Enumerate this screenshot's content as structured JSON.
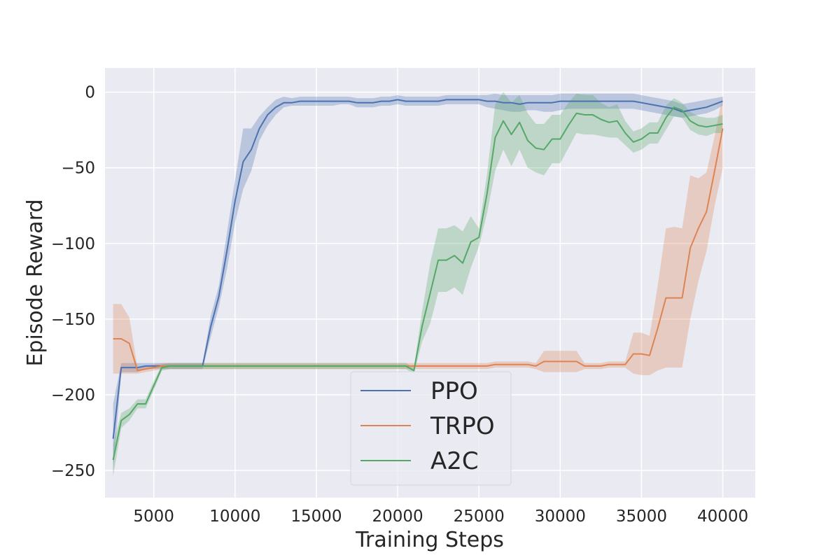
{
  "chart_data": {
    "type": "line",
    "title": "",
    "xlabel": "Training Steps",
    "ylabel": "Episode Reward",
    "xlim": [
      2000,
      42000
    ],
    "ylim": [
      -268,
      16
    ],
    "xticks": [
      5000,
      10000,
      15000,
      20000,
      25000,
      30000,
      35000,
      40000
    ],
    "xtick_labels": [
      "5000",
      "10000",
      "15000",
      "20000",
      "25000",
      "30000",
      "35000",
      "40000"
    ],
    "yticks": [
      0,
      -50,
      -100,
      -150,
      -200,
      -250
    ],
    "ytick_labels": [
      "0",
      "−50",
      "−100",
      "−150",
      "−200",
      "−250"
    ],
    "grid": true,
    "legend_position": "lower-center",
    "x": [
      2500,
      3000,
      3500,
      4000,
      4500,
      5000,
      5500,
      6000,
      6500,
      7000,
      7500,
      8000,
      8500,
      9000,
      9500,
      10000,
      10500,
      11000,
      11500,
      12000,
      12500,
      13000,
      13500,
      14000,
      14500,
      15000,
      15500,
      16000,
      16500,
      17000,
      17500,
      18000,
      18500,
      19000,
      19500,
      20000,
      20500,
      21000,
      21500,
      22000,
      22500,
      23000,
      23500,
      24000,
      24500,
      25000,
      25500,
      26000,
      26500,
      27000,
      27500,
      28000,
      28500,
      29000,
      29500,
      30000,
      30500,
      31000,
      31500,
      32000,
      32500,
      33000,
      33500,
      34000,
      34500,
      35000,
      35500,
      36000,
      36500,
      37000,
      37500,
      38000,
      38500,
      39000,
      39500,
      40000
    ],
    "series": [
      {
        "name": "PPO",
        "color": "#4c72b0",
        "values": [
          -229,
          -182,
          -182,
          -182,
          -181,
          -181,
          -181,
          -181,
          -181,
          -181,
          -181,
          -181,
          -155,
          -135,
          -105,
          -72,
          -46,
          -38,
          -24,
          -15,
          -10,
          -7,
          -7,
          -6,
          -6,
          -6,
          -6,
          -6,
          -6,
          -6,
          -7,
          -7,
          -7,
          -6,
          -6,
          -5,
          -6,
          -6,
          -6,
          -6,
          -6,
          -5,
          -5,
          -5,
          -5,
          -5,
          -6,
          -6,
          -7,
          -7,
          -8,
          -7,
          -7,
          -7,
          -7,
          -6,
          -6,
          -6,
          -6,
          -6,
          -6,
          -6,
          -6,
          -6,
          -6,
          -7,
          -8,
          -9,
          -10,
          -11,
          -13,
          -12,
          -11,
          -10,
          -8,
          -6
        ],
        "lower": [
          -252,
          -185,
          -185,
          -185,
          -183,
          -183,
          -183,
          -183,
          -183,
          -183,
          -183,
          -183,
          -162,
          -142,
          -117,
          -86,
          -64,
          -52,
          -32,
          -22,
          -15,
          -10,
          -9,
          -9,
          -9,
          -9,
          -9,
          -9,
          -8,
          -8,
          -10,
          -10,
          -10,
          -9,
          -9,
          -8,
          -9,
          -9,
          -9,
          -9,
          -9,
          -8,
          -8,
          -8,
          -8,
          -8,
          -10,
          -11,
          -12,
          -13,
          -13,
          -12,
          -12,
          -13,
          -13,
          -12,
          -11,
          -11,
          -11,
          -11,
          -11,
          -11,
          -11,
          -11,
          -11,
          -12,
          -13,
          -14,
          -15,
          -16,
          -17,
          -16,
          -15,
          -14,
          -12,
          -9
        ],
        "upper": [
          -206,
          -179,
          -179,
          -179,
          -179,
          -179,
          -179,
          -179,
          -179,
          -179,
          -179,
          -179,
          -148,
          -128,
          -93,
          -58,
          -24,
          -24,
          -16,
          -10,
          -5,
          -3,
          -4,
          -3,
          -3,
          -3,
          -3,
          -3,
          -3,
          -3,
          -4,
          -4,
          -4,
          -3,
          -3,
          -2,
          -3,
          -3,
          -3,
          -3,
          -3,
          -2,
          -2,
          -2,
          -2,
          -2,
          -2,
          -1,
          -2,
          -2,
          -2,
          -2,
          -2,
          -2,
          -2,
          -1,
          -1,
          -1,
          -1,
          -1,
          -1,
          -1,
          -1,
          -1,
          -1,
          -2,
          -3,
          -4,
          -5,
          -6,
          -8,
          -7,
          -6,
          -5,
          -4,
          -3
        ]
      },
      {
        "name": "TRPO",
        "color": "#dd8452",
        "values": [
          -163,
          -163,
          -166,
          -184,
          -183,
          -182,
          -181,
          -181,
          -181,
          -181,
          -181,
          -181,
          -181,
          -181,
          -181,
          -181,
          -181,
          -181,
          -181,
          -181,
          -181,
          -181,
          -181,
          -181,
          -181,
          -181,
          -181,
          -181,
          -181,
          -181,
          -181,
          -181,
          -181,
          -181,
          -181,
          -181,
          -181,
          -181,
          -181,
          -181,
          -181,
          -181,
          -181,
          -181,
          -181,
          -181,
          -181,
          -180,
          -180,
          -180,
          -180,
          -180,
          -181,
          -178,
          -178,
          -178,
          -178,
          -178,
          -181,
          -181,
          -181,
          -180,
          -180,
          -180,
          -173,
          -173,
          -174,
          -156,
          -136,
          -136,
          -136,
          -103,
          -90,
          -79,
          -52,
          -24
        ],
        "lower": [
          -186,
          -186,
          -186,
          -186,
          -185,
          -184,
          -183,
          -183,
          -183,
          -183,
          -183,
          -183,
          -183,
          -183,
          -183,
          -183,
          -183,
          -183,
          -183,
          -183,
          -183,
          -183,
          -183,
          -183,
          -183,
          -183,
          -183,
          -183,
          -183,
          -183,
          -183,
          -183,
          -183,
          -183,
          -183,
          -183,
          -183,
          -183,
          -183,
          -183,
          -183,
          -183,
          -183,
          -183,
          -183,
          -183,
          -183,
          -182,
          -182,
          -182,
          -182,
          -182,
          -183,
          -185,
          -185,
          -185,
          -185,
          -185,
          -183,
          -183,
          -183,
          -182,
          -182,
          -182,
          -186,
          -187,
          -187,
          -184,
          -182,
          -182,
          -182,
          -150,
          -125,
          -105,
          -75,
          -50
        ],
        "upper": [
          -140,
          -140,
          -149,
          -182,
          -181,
          -180,
          -179,
          -179,
          -179,
          -179,
          -179,
          -179,
          -179,
          -179,
          -179,
          -179,
          -179,
          -179,
          -179,
          -179,
          -179,
          -179,
          -179,
          -179,
          -179,
          -179,
          -179,
          -179,
          -179,
          -179,
          -179,
          -179,
          -179,
          -179,
          -179,
          -179,
          -179,
          -179,
          -179,
          -179,
          -179,
          -179,
          -179,
          -179,
          -179,
          -179,
          -179,
          -178,
          -178,
          -178,
          -178,
          -178,
          -179,
          -171,
          -171,
          -171,
          -171,
          -171,
          -179,
          -179,
          -179,
          -178,
          -178,
          -178,
          -159,
          -159,
          -161,
          -128,
          -90,
          -89,
          -90,
          -55,
          -57,
          -53,
          -29,
          -2
        ]
      },
      {
        "name": "A2C",
        "color": "#55a868",
        "values": [
          -243,
          -217,
          -213,
          -206,
          -206,
          -194,
          -182,
          -181,
          -181,
          -181,
          -181,
          -181,
          -181,
          -181,
          -181,
          -181,
          -181,
          -181,
          -181,
          -181,
          -181,
          -181,
          -181,
          -181,
          -181,
          -181,
          -181,
          -181,
          -181,
          -181,
          -181,
          -181,
          -181,
          -181,
          -181,
          -181,
          -181,
          -184,
          -155,
          -133,
          -111,
          -111,
          -108,
          -113,
          -99,
          -96,
          -67,
          -30,
          -19,
          -28,
          -20,
          -32,
          -37,
          -38,
          -31,
          -31,
          -22,
          -14,
          -15,
          -15,
          -18,
          -20,
          -19,
          -27,
          -33,
          -31,
          -27,
          -27,
          -17,
          -10,
          -12,
          -19,
          -22,
          -23,
          -22,
          -21
        ],
        "lower": [
          -254,
          -222,
          -217,
          -209,
          -209,
          -197,
          -184,
          -183,
          -183,
          -183,
          -183,
          -183,
          -183,
          -183,
          -183,
          -183,
          -183,
          -183,
          -183,
          -183,
          -183,
          -183,
          -183,
          -183,
          -183,
          -183,
          -183,
          -183,
          -183,
          -183,
          -183,
          -183,
          -183,
          -183,
          -183,
          -183,
          -183,
          -186,
          -165,
          -153,
          -132,
          -132,
          -129,
          -134,
          -116,
          -102,
          -80,
          -52,
          -38,
          -49,
          -38,
          -50,
          -53,
          -55,
          -47,
          -47,
          -37,
          -27,
          -28,
          -28,
          -29,
          -30,
          -30,
          -35,
          -40,
          -38,
          -34,
          -34,
          -25,
          -16,
          -17,
          -25,
          -28,
          -29,
          -27,
          -27
        ],
        "upper": [
          -233,
          -212,
          -209,
          -203,
          -203,
          -191,
          -180,
          -179,
          -179,
          -179,
          -179,
          -179,
          -179,
          -179,
          -179,
          -179,
          -179,
          -179,
          -179,
          -179,
          -179,
          -179,
          -179,
          -179,
          -179,
          -179,
          -179,
          -179,
          -179,
          -179,
          -179,
          -179,
          -179,
          -179,
          -179,
          -179,
          -179,
          -182,
          -145,
          -113,
          -90,
          -90,
          -88,
          -92,
          -82,
          -90,
          -54,
          -8,
          0,
          -7,
          -2,
          -14,
          -21,
          -21,
          -15,
          -15,
          -7,
          -1,
          -2,
          -2,
          -7,
          -10,
          -8,
          -19,
          -26,
          -24,
          -20,
          -20,
          -9,
          -4,
          -7,
          -13,
          -16,
          -17,
          -17,
          -15
        ]
      }
    ]
  }
}
